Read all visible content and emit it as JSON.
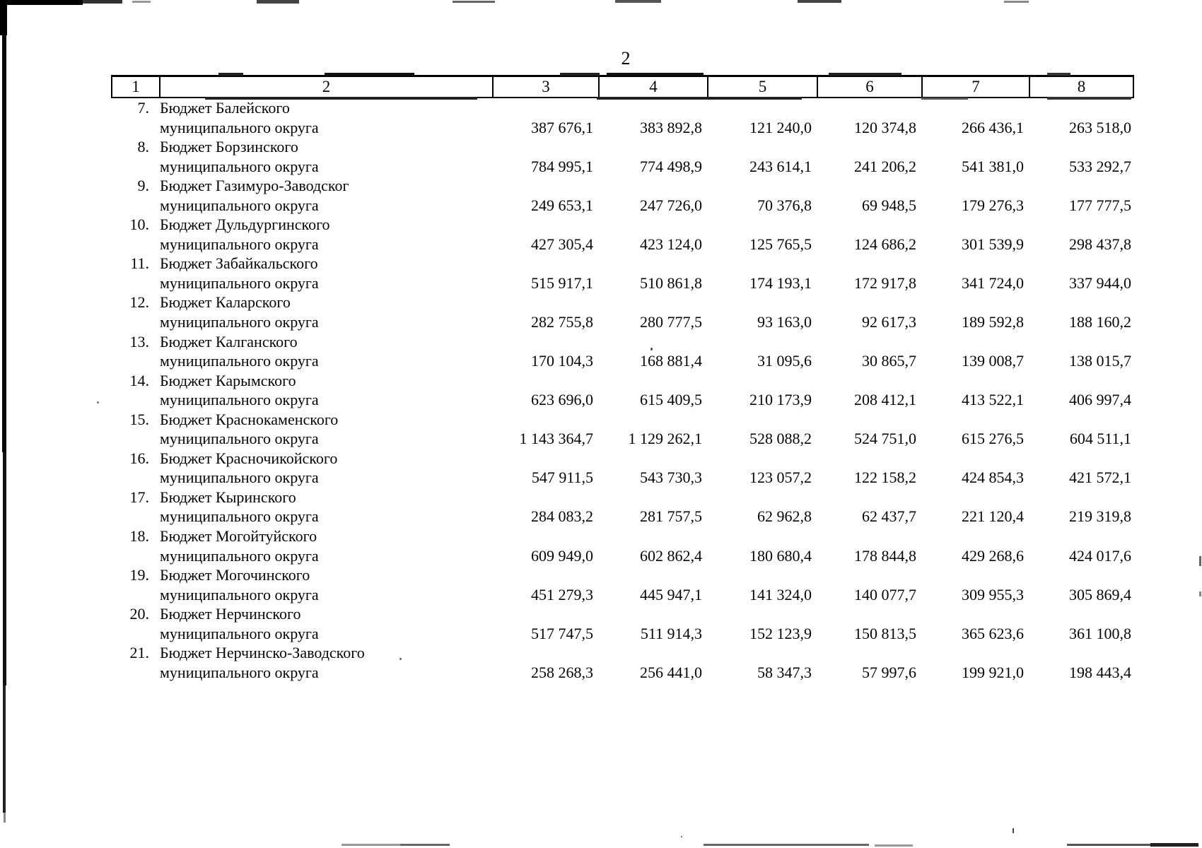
{
  "page_number": "2",
  "table": {
    "header_columns": [
      "1",
      "2",
      "3",
      "4",
      "5",
      "6",
      "7",
      "8"
    ],
    "rows": [
      {
        "num": "7.",
        "name": "Бюджет Балейского",
        "name2": "муниципального округа",
        "values": [
          "387 676,1",
          "383 892,8",
          "121 240,0",
          "120 374,8",
          "266 436,1",
          "263 518,0"
        ]
      },
      {
        "num": "8.",
        "name": "Бюджет Борзинского",
        "name2": "муниципального округа",
        "values": [
          "784 995,1",
          "774 498,9",
          "243 614,1",
          "241 206,2",
          "541 381,0",
          "533 292,7"
        ]
      },
      {
        "num": "9.",
        "name": "Бюджет Газимуро-Заводског",
        "name2": "муниципального округа",
        "values": [
          "249 653,1",
          "247 726,0",
          "70 376,8",
          "69 948,5",
          "179 276,3",
          "177 777,5"
        ]
      },
      {
        "num": "10.",
        "name": "Бюджет Дульдургинского",
        "name2": "муниципального округа",
        "values": [
          "427 305,4",
          "423 124,0",
          "125 765,5",
          "124 686,2",
          "301 539,9",
          "298 437,8"
        ]
      },
      {
        "num": "11.",
        "name": "Бюджет Забайкальского",
        "name2": "муниципального округа",
        "values": [
          "515 917,1",
          "510 861,8",
          "174 193,1",
          "172 917,8",
          "341 724,0",
          "337 944,0"
        ]
      },
      {
        "num": "12.",
        "name": "Бюджет Каларского",
        "name2": "муниципального округа",
        "values": [
          "282 755,8",
          "280 777,5",
          "93 163,0",
          "92 617,3",
          "189 592,8",
          "188 160,2"
        ]
      },
      {
        "num": "13.",
        "name": "Бюджет Калганского",
        "name2": "муниципального округа",
        "values": [
          "170 104,3",
          "168 881,4",
          "31 095,6",
          "30 865,7",
          "139 008,7",
          "138 015,7"
        ]
      },
      {
        "num": "14.",
        "name": "Бюджет Карымского",
        "name2": "муниципального округа",
        "values": [
          "623 696,0",
          "615 409,5",
          "210 173,9",
          "208 412,1",
          "413 522,1",
          "406 997,4"
        ]
      },
      {
        "num": "15.",
        "name": "Бюджет Краснокаменского",
        "name2": "муниципального округа",
        "values": [
          "1 143 364,7",
          "1 129 262,1",
          "528 088,2",
          "524 751,0",
          "615 276,5",
          "604 511,1"
        ]
      },
      {
        "num": "16.",
        "name": "Бюджет Красночикойского",
        "name2": "муниципального округа",
        "values": [
          "547 911,5",
          "543 730,3",
          "123 057,2",
          "122 158,2",
          "424 854,3",
          "421 572,1"
        ]
      },
      {
        "num": "17.",
        "name": "Бюджет Кыринского",
        "name2": "муниципального округа",
        "values": [
          "284 083,2",
          "281 757,5",
          "62 962,8",
          "62 437,7",
          "221 120,4",
          "219 319,8"
        ]
      },
      {
        "num": "18.",
        "name": "Бюджет Могойтуйского",
        "name2": "муниципального округа",
        "values": [
          "609 949,0",
          "602 862,4",
          "180 680,4",
          "178 844,8",
          "429 268,6",
          "424 017,6"
        ]
      },
      {
        "num": "19.",
        "name": "Бюджет Могочинского",
        "name2": "муниципального округа",
        "values": [
          "451 279,3",
          "445 947,1",
          "141 324,0",
          "140 077,7",
          "309 955,3",
          "305 869,4"
        ]
      },
      {
        "num": "20.",
        "name": "Бюджет Нерчинского",
        "name2": "муниципального округа",
        "values": [
          "517 747,5",
          "511 914,3",
          "152 123,9",
          "150 813,5",
          "365 623,6",
          "361 100,8"
        ]
      },
      {
        "num": "21.",
        "name": "Бюджет Нерчинско-Заводского",
        "name2": "муниципального округа",
        "values": [
          "258 268,3",
          "256 441,0",
          "58 347,3",
          "57 997,6",
          "199 921,0",
          "198 443,4"
        ]
      }
    ]
  }
}
